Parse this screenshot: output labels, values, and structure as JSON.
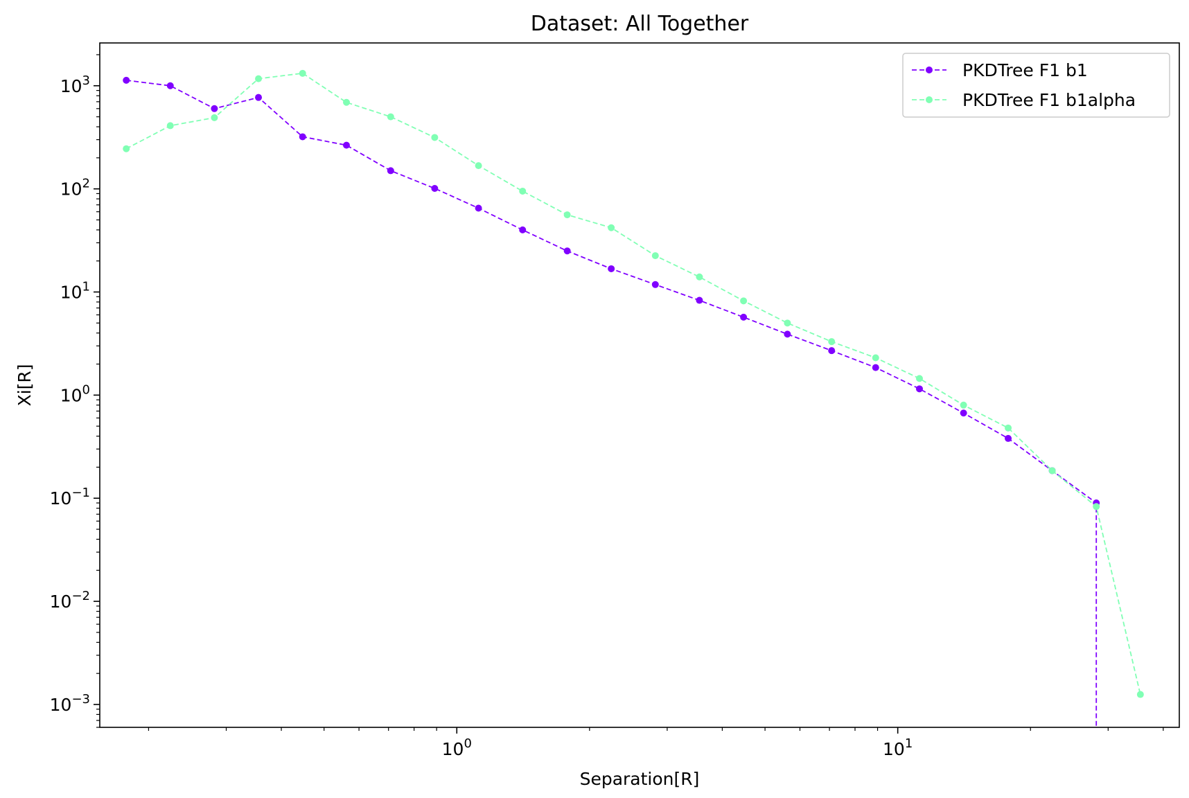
{
  "chart_data": {
    "type": "line",
    "title": "Dataset: All Together",
    "xlabel": "Separation[R]",
    "ylabel": "Xi[R]",
    "xscale": "log",
    "yscale": "log",
    "xlim": [
      0.155,
      43.5
    ],
    "ylim": [
      0.0006,
      2600
    ],
    "grid": false,
    "legend_position": "upper right",
    "x_ticks": [
      {
        "value": 1,
        "base": "10",
        "exp": "0"
      },
      {
        "value": 10,
        "base": "10",
        "exp": "1"
      }
    ],
    "y_ticks": [
      {
        "value": 0.001,
        "base": "10",
        "exp": "−3"
      },
      {
        "value": 0.01,
        "base": "10",
        "exp": "−2"
      },
      {
        "value": 0.1,
        "base": "10",
        "exp": "−1"
      },
      {
        "value": 1,
        "base": "10",
        "exp": "0"
      },
      {
        "value": 10,
        "base": "10",
        "exp": "1"
      },
      {
        "value": 100,
        "base": "10",
        "exp": "2"
      },
      {
        "value": 1000,
        "base": "10",
        "exp": "3"
      }
    ],
    "series": [
      {
        "name": "PKDTree F1 b1",
        "color": "#8000ff",
        "linestyle": "dashed",
        "marker": "circle",
        "points": [
          [
            0.178,
            1130
          ],
          [
            0.224,
            1000
          ],
          [
            0.282,
            600
          ],
          [
            0.355,
            770
          ],
          [
            0.447,
            320
          ],
          [
            0.562,
            265
          ],
          [
            0.708,
            150
          ],
          [
            0.891,
            101
          ],
          [
            1.12,
            65
          ],
          [
            1.41,
            40
          ],
          [
            1.78,
            25
          ],
          [
            2.24,
            16.8
          ],
          [
            2.82,
            11.8
          ],
          [
            3.55,
            8.3
          ],
          [
            4.47,
            5.7
          ],
          [
            5.62,
            3.9
          ],
          [
            7.08,
            2.7
          ],
          [
            8.91,
            1.85
          ],
          [
            11.2,
            1.15
          ],
          [
            14.1,
            0.67
          ],
          [
            17.8,
            0.38
          ],
          [
            22.4,
            0.185
          ],
          [
            28.2,
            0.09
          ],
          [
            28.2,
            0.0006
          ]
        ]
      },
      {
        "name": "PKDTree F1 b1alpha",
        "color": "#80ffb4",
        "linestyle": "dashed",
        "marker": "circle",
        "points": [
          [
            0.178,
            245
          ],
          [
            0.224,
            410
          ],
          [
            0.282,
            490
          ],
          [
            0.355,
            1170
          ],
          [
            0.447,
            1320
          ],
          [
            0.562,
            690
          ],
          [
            0.708,
            500
          ],
          [
            0.891,
            315
          ],
          [
            1.12,
            168
          ],
          [
            1.41,
            95
          ],
          [
            1.78,
            56
          ],
          [
            2.24,
            42
          ],
          [
            2.82,
            22.5
          ],
          [
            3.55,
            14
          ],
          [
            4.47,
            8.2
          ],
          [
            5.62,
            5.0
          ],
          [
            7.08,
            3.3
          ],
          [
            8.91,
            2.3
          ],
          [
            11.2,
            1.45
          ],
          [
            14.1,
            0.8
          ],
          [
            17.8,
            0.48
          ],
          [
            22.4,
            0.185
          ],
          [
            28.2,
            0.083
          ],
          [
            35.5,
            0.00125
          ]
        ]
      }
    ]
  }
}
